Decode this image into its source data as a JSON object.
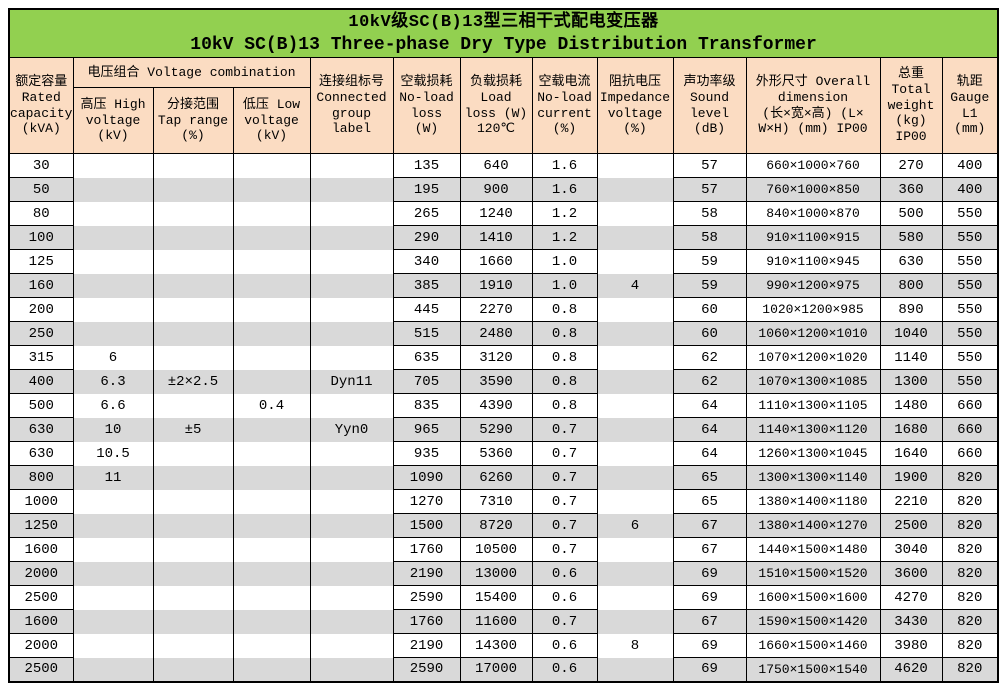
{
  "colors": {
    "page-bg": "#ffffff",
    "title-bg": "#92d050",
    "header-bg": "#fbdcc2",
    "stripe": "#d9d9d9",
    "border": "#000000",
    "text": "#000000"
  },
  "title": {
    "line1": "10kV级SC(B)13型三相干式配电变压器",
    "line2": "10kV SC(B)13 Three-phase Dry Type Distribution Transformer"
  },
  "columns": {
    "capacity": "额定容量\nRated\ncapacity\n(kVA)",
    "voltage_group": "电压组合 Voltage combination",
    "hv": "高压 High\nvoltage\n(kV)",
    "tap": "分接范围\nTap range\n(%)",
    "lv": "低压 Low\nvoltage\n(kV)",
    "group": "连接组标号\nConnected\ngroup\nlabel",
    "no_load_loss": "空载损耗\nNo-load\nloss\n(W)",
    "load_loss": "负载损耗\nLoad\nloss (W)\n120℃",
    "no_load_current": "空载电流\nNo-load\ncurrent\n(%)",
    "impedance": "阻抗电压\nImpedance\nvoltage\n(%)",
    "sound": "声功率级\nSound\nlevel\n(dB)",
    "dimension": "外形尺寸 Overall\ndimension\n(长×宽×高) (L×\nW×H) (mm) IP00",
    "weight": "总重\nTotal\nweight\n(kg)\nIP00",
    "gauge": "轨距\nGauge\nL1\n(mm)"
  },
  "column_keys": [
    "capacity",
    "hv",
    "tap",
    "lv",
    "group",
    "no_load_loss",
    "load_loss",
    "no_load_current",
    "impedance",
    "sound",
    "dimension",
    "weight",
    "gauge"
  ],
  "merged_columns": [
    "hv",
    "tap",
    "lv",
    "group",
    "impedance"
  ],
  "rows": [
    [
      "30",
      "",
      "",
      "",
      "",
      "135",
      "640",
      "1.6",
      "",
      "57",
      "660×1000×760",
      "270",
      "400"
    ],
    [
      "50",
      "",
      "",
      "",
      "",
      "195",
      "900",
      "1.6",
      "",
      "57",
      "760×1000×850",
      "360",
      "400"
    ],
    [
      "80",
      "",
      "",
      "",
      "",
      "265",
      "1240",
      "1.2",
      "",
      "58",
      "840×1000×870",
      "500",
      "550"
    ],
    [
      "100",
      "",
      "",
      "",
      "",
      "290",
      "1410",
      "1.2",
      "",
      "58",
      "910×1100×915",
      "580",
      "550"
    ],
    [
      "125",
      "",
      "",
      "",
      "",
      "340",
      "1660",
      "1.0",
      "",
      "59",
      "910×1100×945",
      "630",
      "550"
    ],
    [
      "160",
      "",
      "",
      "",
      "",
      "385",
      "1910",
      "1.0",
      "4",
      "59",
      "990×1200×975",
      "800",
      "550"
    ],
    [
      "200",
      "",
      "",
      "",
      "",
      "445",
      "2270",
      "0.8",
      "",
      "60",
      "1020×1200×985",
      "890",
      "550"
    ],
    [
      "250",
      "",
      "",
      "",
      "",
      "515",
      "2480",
      "0.8",
      "",
      "60",
      "1060×1200×1010",
      "1040",
      "550"
    ],
    [
      "315",
      "6",
      "",
      "",
      "",
      "635",
      "3120",
      "0.8",
      "",
      "62",
      "1070×1200×1020",
      "1140",
      "550"
    ],
    [
      "400",
      "6.3",
      "±2×2.5",
      "",
      "Dyn11",
      "705",
      "3590",
      "0.8",
      "",
      "62",
      "1070×1300×1085",
      "1300",
      "550"
    ],
    [
      "500",
      "6.6",
      "",
      "0.4",
      "",
      "835",
      "4390",
      "0.8",
      "",
      "64",
      "1110×1300×1105",
      "1480",
      "660"
    ],
    [
      "630",
      "10",
      "±5",
      "",
      "Yyn0",
      "965",
      "5290",
      "0.7",
      "",
      "64",
      "1140×1300×1120",
      "1680",
      "660"
    ],
    [
      "630",
      "10.5",
      "",
      "",
      "",
      "935",
      "5360",
      "0.7",
      "",
      "64",
      "1260×1300×1045",
      "1640",
      "660"
    ],
    [
      "800",
      "11",
      "",
      "",
      "",
      "1090",
      "6260",
      "0.7",
      "",
      "65",
      "1300×1300×1140",
      "1900",
      "820"
    ],
    [
      "1000",
      "",
      "",
      "",
      "",
      "1270",
      "7310",
      "0.7",
      "",
      "65",
      "1380×1400×1180",
      "2210",
      "820"
    ],
    [
      "1250",
      "",
      "",
      "",
      "",
      "1500",
      "8720",
      "0.7",
      "6",
      "67",
      "1380×1400×1270",
      "2500",
      "820"
    ],
    [
      "1600",
      "",
      "",
      "",
      "",
      "1760",
      "10500",
      "0.7",
      "",
      "67",
      "1440×1500×1480",
      "3040",
      "820"
    ],
    [
      "2000",
      "",
      "",
      "",
      "",
      "2190",
      "13000",
      "0.6",
      "",
      "69",
      "1510×1500×1520",
      "3600",
      "820"
    ],
    [
      "2500",
      "",
      "",
      "",
      "",
      "2590",
      "15400",
      "0.6",
      "",
      "69",
      "1600×1500×1600",
      "4270",
      "820"
    ],
    [
      "1600",
      "",
      "",
      "",
      "",
      "1760",
      "11600",
      "0.7",
      "",
      "67",
      "1590×1500×1420",
      "3430",
      "820"
    ],
    [
      "2000",
      "",
      "",
      "",
      "",
      "2190",
      "14300",
      "0.6",
      "8",
      "69",
      "1660×1500×1460",
      "3980",
      "820"
    ],
    [
      "2500",
      "",
      "",
      "",
      "",
      "2590",
      "17000",
      "0.6",
      "",
      "69",
      "1750×1500×1540",
      "4620",
      "820"
    ]
  ]
}
